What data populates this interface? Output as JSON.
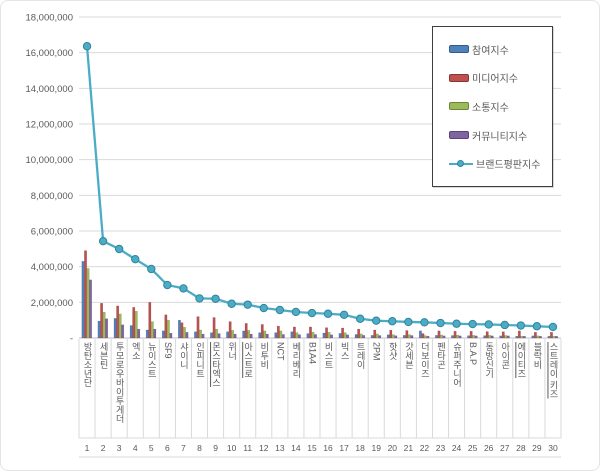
{
  "chart_data": {
    "type": "bar",
    "subtype": "grouped-bars-with-line-overlay",
    "title": "",
    "xlabel": "",
    "ylabel": "",
    "categories": [
      "방탄소년단",
      "세븐틴",
      "투모로우바이투게더",
      "엑소",
      "뉴이스트",
      "SF9",
      "샤이니",
      "인피니트",
      "몬스타엑스",
      "위너",
      "아스트로",
      "비투비",
      "NCT",
      "베리베리",
      "B1A4",
      "비스트",
      "빅스",
      "트레이",
      "2PM",
      "핫샷",
      "갓세븐",
      "더보이즈",
      "펜타곤",
      "슈퍼주니어",
      "B.A.P",
      "동방신기",
      "아이콘",
      "에이티즈",
      "블락비",
      "스트레이 키즈"
    ],
    "rank_labels": [
      "1",
      "2",
      "3",
      "4",
      "5",
      "6",
      "7",
      "8",
      "9",
      "10",
      "11",
      "12",
      "13",
      "14",
      "15",
      "16",
      "17",
      "18",
      "19",
      "20",
      "21",
      "22",
      "23",
      "24",
      "25",
      "26",
      "27",
      "28",
      "29",
      "30"
    ],
    "underlined_categories": [
      9,
      11,
      28,
      30
    ],
    "series": [
      {
        "name": "참여지수",
        "type": "bar",
        "color": "#4F81BD",
        "values": [
          4300000,
          950000,
          1100000,
          700000,
          450000,
          400000,
          1000000,
          350000,
          300000,
          350000,
          400000,
          300000,
          300000,
          350000,
          250000,
          280000,
          260000,
          200000,
          150000,
          180000,
          150000,
          400000,
          150000,
          140000,
          130000,
          130000,
          120000,
          100000,
          120000,
          100000
        ]
      },
      {
        "name": "미디어지수",
        "type": "bar",
        "color": "#C0504D",
        "values": [
          4900000,
          1950000,
          1800000,
          1720000,
          2000000,
          1300000,
          860000,
          1200000,
          1150000,
          920000,
          820000,
          760000,
          670000,
          620000,
          620000,
          580000,
          560000,
          500000,
          450000,
          440000,
          420000,
          250000,
          400000,
          380000,
          380000,
          360000,
          350000,
          400000,
          320000,
          320000
        ]
      },
      {
        "name": "소통지수",
        "type": "bar",
        "color": "#9BBB59",
        "values": [
          3900000,
          1450000,
          1350000,
          1500000,
          920000,
          1000000,
          600000,
          450000,
          500000,
          430000,
          430000,
          400000,
          400000,
          300000,
          330000,
          320000,
          300000,
          230000,
          230000,
          190000,
          190000,
          130000,
          170000,
          160000,
          150000,
          150000,
          140000,
          100000,
          120000,
          100000
        ]
      },
      {
        "name": "커뮤니티지수",
        "type": "bar",
        "color": "#8064A2",
        "values": [
          3260000,
          1080000,
          740000,
          500000,
          500000,
          270000,
          320000,
          220000,
          250000,
          220000,
          220000,
          220000,
          200000,
          190000,
          200000,
          180000,
          180000,
          150000,
          140000,
          130000,
          140000,
          100000,
          120000,
          120000,
          120000,
          120000,
          120000,
          100000,
          100000,
          100000
        ]
      },
      {
        "name": "브랜드평판지수",
        "type": "line",
        "color": "#4BACC6",
        "marker": "circle",
        "marker_stroke": "#31849B",
        "values": [
          16360000,
          5430000,
          4990000,
          4420000,
          3870000,
          2970000,
          2780000,
          2220000,
          2200000,
          1920000,
          1870000,
          1680000,
          1570000,
          1460000,
          1400000,
          1360000,
          1300000,
          1080000,
          970000,
          940000,
          900000,
          880000,
          840000,
          800000,
          780000,
          760000,
          730000,
          700000,
          660000,
          620000
        ]
      }
    ],
    "y_axis": {
      "min": 0,
      "max": 18000000,
      "step": 2000000,
      "zero_label": "-",
      "grid": true,
      "tick_labels": [
        "-",
        "2,000,000",
        "4,000,000",
        "6,000,000",
        "8,000,000",
        "10,000,000",
        "12,000,000",
        "14,000,000",
        "16,000,000",
        "18,000,000"
      ]
    },
    "legend": {
      "position": "top-right",
      "entries": [
        "참여지수",
        "미디어지수",
        "소통지수",
        "커뮤니티지수",
        "브랜드평판지수"
      ]
    },
    "colors": {
      "grid": "#D9D9D9",
      "axis_line": "#BFBFBF",
      "tick_text": "#595959",
      "background": "#FFFFFF",
      "outer_border": "#E4E4E4",
      "legend_border": "#3F3F3F"
    }
  }
}
